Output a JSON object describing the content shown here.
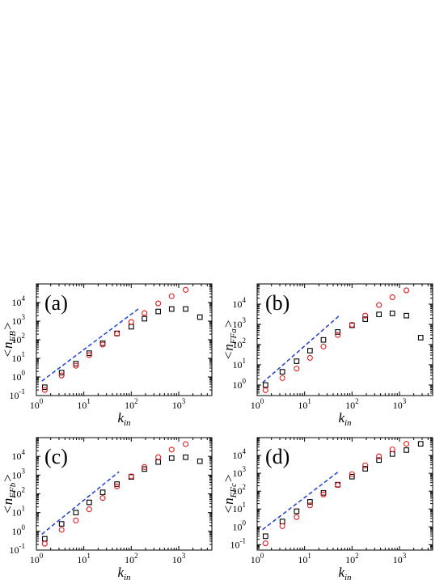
{
  "colors": {
    "square": "#000000",
    "circle": "#e31a1c",
    "fit": "#1f3fd6"
  },
  "chart_data": [
    {
      "type": "scatter",
      "panel": "(a)",
      "xlabel": "k",
      "xlabel_sub": "in",
      "ylabel_prefix": "<n",
      "ylabel_sub": "FB",
      "ylabel_suffix": ">",
      "xscale": "log",
      "yscale": "log",
      "xlim": [
        1,
        5000
      ],
      "ylim": [
        0.1,
        100000
      ],
      "xticks": [
        {
          "v": 1,
          "b": "10",
          "e": "0"
        },
        {
          "v": 10,
          "b": "10",
          "e": "1"
        },
        {
          "v": 100,
          "b": "10",
          "e": "2"
        },
        {
          "v": 1000,
          "b": "10",
          "e": "3"
        }
      ],
      "yticks": [
        {
          "v": 0.1,
          "b": "10",
          "e": "-1"
        },
        {
          "v": 1,
          "b": "10",
          "e": "0"
        },
        {
          "v": 10,
          "b": "10",
          "e": "1"
        },
        {
          "v": 100,
          "b": "10",
          "e": "2"
        },
        {
          "v": 1000,
          "b": "10",
          "e": "3"
        },
        {
          "v": 10000,
          "b": "10",
          "e": "4"
        }
      ],
      "series": [
        {
          "marker": "square",
          "x": [
            1.5,
            3.4,
            6.8,
            13,
            25,
            50,
            100,
            190,
            370,
            710,
            1400,
            2800
          ],
          "y": [
            0.28,
            1.7,
            5.2,
            19,
            65,
            220,
            500,
            1350,
            3300,
            4500,
            4500,
            1650
          ]
        },
        {
          "marker": "circle",
          "x": [
            1.5,
            3.4,
            6.8,
            13,
            25,
            50,
            100,
            190,
            370,
            710,
            1400
          ],
          "y": [
            0.2,
            1.2,
            4,
            15,
            55,
            210,
            900,
            2700,
            9000,
            22000,
            48000
          ]
        }
      ],
      "fit_line": {
        "x": [
          1.3,
          140
        ],
        "y": [
          0.6,
          4500
        ]
      }
    },
    {
      "type": "scatter",
      "panel": "(b)",
      "xlabel": "k",
      "xlabel_sub": "in",
      "ylabel_prefix": "<n",
      "ylabel_sub": "FFa",
      "ylabel_suffix": ">",
      "xscale": "log",
      "yscale": "log",
      "xlim": [
        1,
        5000
      ],
      "ylim": [
        0.3,
        100000
      ],
      "xticks": [
        {
          "v": 1,
          "b": "10",
          "e": "0"
        },
        {
          "v": 10,
          "b": "10",
          "e": "1"
        },
        {
          "v": 100,
          "b": "10",
          "e": "2"
        },
        {
          "v": 1000,
          "b": "10",
          "e": "3"
        }
      ],
      "yticks": [
        {
          "v": 1,
          "b": "10",
          "e": "0"
        },
        {
          "v": 10,
          "b": "10",
          "e": "1"
        },
        {
          "v": 100,
          "b": "10",
          "e": "2"
        },
        {
          "v": 1000,
          "b": "10",
          "e": "3"
        },
        {
          "v": 10000,
          "b": "10",
          "e": "4"
        }
      ],
      "series": [
        {
          "marker": "square",
          "x": [
            1.5,
            3.4,
            6.8,
            13,
            25,
            50,
            100,
            190,
            370,
            710,
            1400,
            2800
          ],
          "y": [
            1,
            4.5,
            15,
            50,
            170,
            420,
            900,
            1800,
            3100,
            3500,
            2700,
            220
          ]
        },
        {
          "marker": "circle",
          "x": [
            1.5,
            3.4,
            6.8,
            13,
            25,
            50,
            100,
            190,
            370,
            710,
            1400
          ],
          "y": [
            0.55,
            2.2,
            6.5,
            22,
            80,
            300,
            950,
            2700,
            9000,
            22000,
            48000
          ]
        }
      ],
      "fit_line": {
        "x": [
          1.3,
          55
        ],
        "y": [
          1.3,
          2800
        ]
      }
    },
    {
      "type": "scatter",
      "panel": "(c)",
      "xlabel": "k",
      "xlabel_sub": "in",
      "ylabel_prefix": "<n",
      "ylabel_sub": "FFb",
      "ylabel_suffix": ">",
      "xscale": "log",
      "yscale": "log",
      "xlim": [
        1,
        5000
      ],
      "ylim": [
        0.1,
        100000
      ],
      "xticks": [
        {
          "v": 1,
          "b": "10",
          "e": "0"
        },
        {
          "v": 10,
          "b": "10",
          "e": "1"
        },
        {
          "v": 100,
          "b": "10",
          "e": "2"
        },
        {
          "v": 1000,
          "b": "10",
          "e": "3"
        }
      ],
      "yticks": [
        {
          "v": 0.1,
          "b": "10",
          "e": "-1"
        },
        {
          "v": 1,
          "b": "10",
          "e": "0"
        },
        {
          "v": 10,
          "b": "10",
          "e": "1"
        },
        {
          "v": 100,
          "b": "10",
          "e": "2"
        },
        {
          "v": 1000,
          "b": "10",
          "e": "3"
        },
        {
          "v": 10000,
          "b": "10",
          "e": "4"
        }
      ],
      "series": [
        {
          "marker": "square",
          "x": [
            1.5,
            3.4,
            6.8,
            13,
            25,
            50,
            100,
            190,
            370,
            710,
            1400,
            2800
          ],
          "y": [
            0.4,
            2.5,
            10,
            35,
            120,
            330,
            800,
            2100,
            5000,
            8000,
            9000,
            5500
          ]
        },
        {
          "marker": "circle",
          "x": [
            1.5,
            3.4,
            6.8,
            13,
            25,
            50,
            100,
            190,
            370,
            710,
            1400
          ],
          "y": [
            0.22,
            1.2,
            3.8,
            15,
            60,
            250,
            850,
            2700,
            9000,
            23000,
            45000
          ]
        }
      ],
      "fit_line": {
        "x": [
          1.3,
          55
        ],
        "y": [
          0.7,
          1500
        ]
      }
    },
    {
      "type": "scatter",
      "panel": "(d)",
      "xlabel": "k",
      "xlabel_sub": "in",
      "ylabel_prefix": "<n",
      "ylabel_sub": "FFc",
      "ylabel_suffix": ">",
      "xscale": "log",
      "yscale": "log",
      "xlim": [
        1,
        5000
      ],
      "ylim": [
        0.05,
        100000
      ],
      "xticks": [
        {
          "v": 1,
          "b": "10",
          "e": "0"
        },
        {
          "v": 10,
          "b": "10",
          "e": "1"
        },
        {
          "v": 100,
          "b": "10",
          "e": "2"
        },
        {
          "v": 1000,
          "b": "10",
          "e": "3"
        }
      ],
      "yticks": [
        {
          "v": 0.1,
          "b": "10",
          "e": "-1"
        },
        {
          "v": 1,
          "b": "10",
          "e": "0"
        },
        {
          "v": 10,
          "b": "10",
          "e": "1"
        },
        {
          "v": 100,
          "b": "10",
          "e": "2"
        },
        {
          "v": 1000,
          "b": "10",
          "e": "3"
        },
        {
          "v": 10000,
          "b": "10",
          "e": "4"
        }
      ],
      "series": [
        {
          "marker": "square",
          "x": [
            1.5,
            3.4,
            6.8,
            13,
            25,
            50,
            100,
            190,
            370,
            710,
            1400,
            2800
          ],
          "y": [
            0.3,
            2,
            7.5,
            25,
            80,
            230,
            650,
            1800,
            5500,
            12000,
            20000,
            45000
          ]
        },
        {
          "marker": "circle",
          "x": [
            1.5,
            3.4,
            6.8,
            13,
            25,
            50,
            100,
            190,
            370,
            710,
            1400
          ],
          "y": [
            0.12,
            1.1,
            3.5,
            16,
            65,
            220,
            900,
            2800,
            9000,
            22000,
            45000
          ]
        }
      ],
      "fit_line": {
        "x": [
          1.3,
          55
        ],
        "y": [
          0.7,
          1400
        ]
      }
    }
  ]
}
